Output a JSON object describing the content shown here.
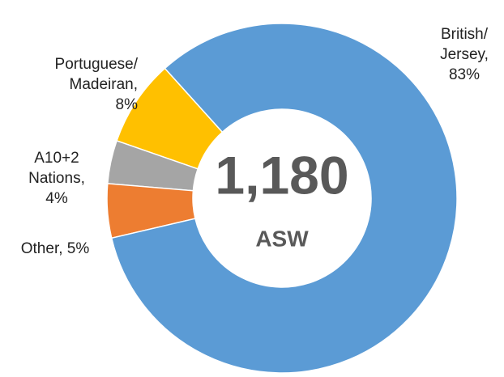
{
  "chart_data": {
    "type": "donut",
    "labels": [
      "British/\nJersey,\n83%",
      "Other, 5%",
      "A10+2\nNations,\n4%",
      "Portuguese/\nMadeiran,\n8%"
    ],
    "values": [
      83,
      5,
      4,
      8
    ],
    "colors": [
      "#5b9bd5",
      "#ed7d31",
      "#a5a5a5",
      "#ffc000"
    ],
    "center_value": "1,180",
    "center_label": "ASW"
  }
}
